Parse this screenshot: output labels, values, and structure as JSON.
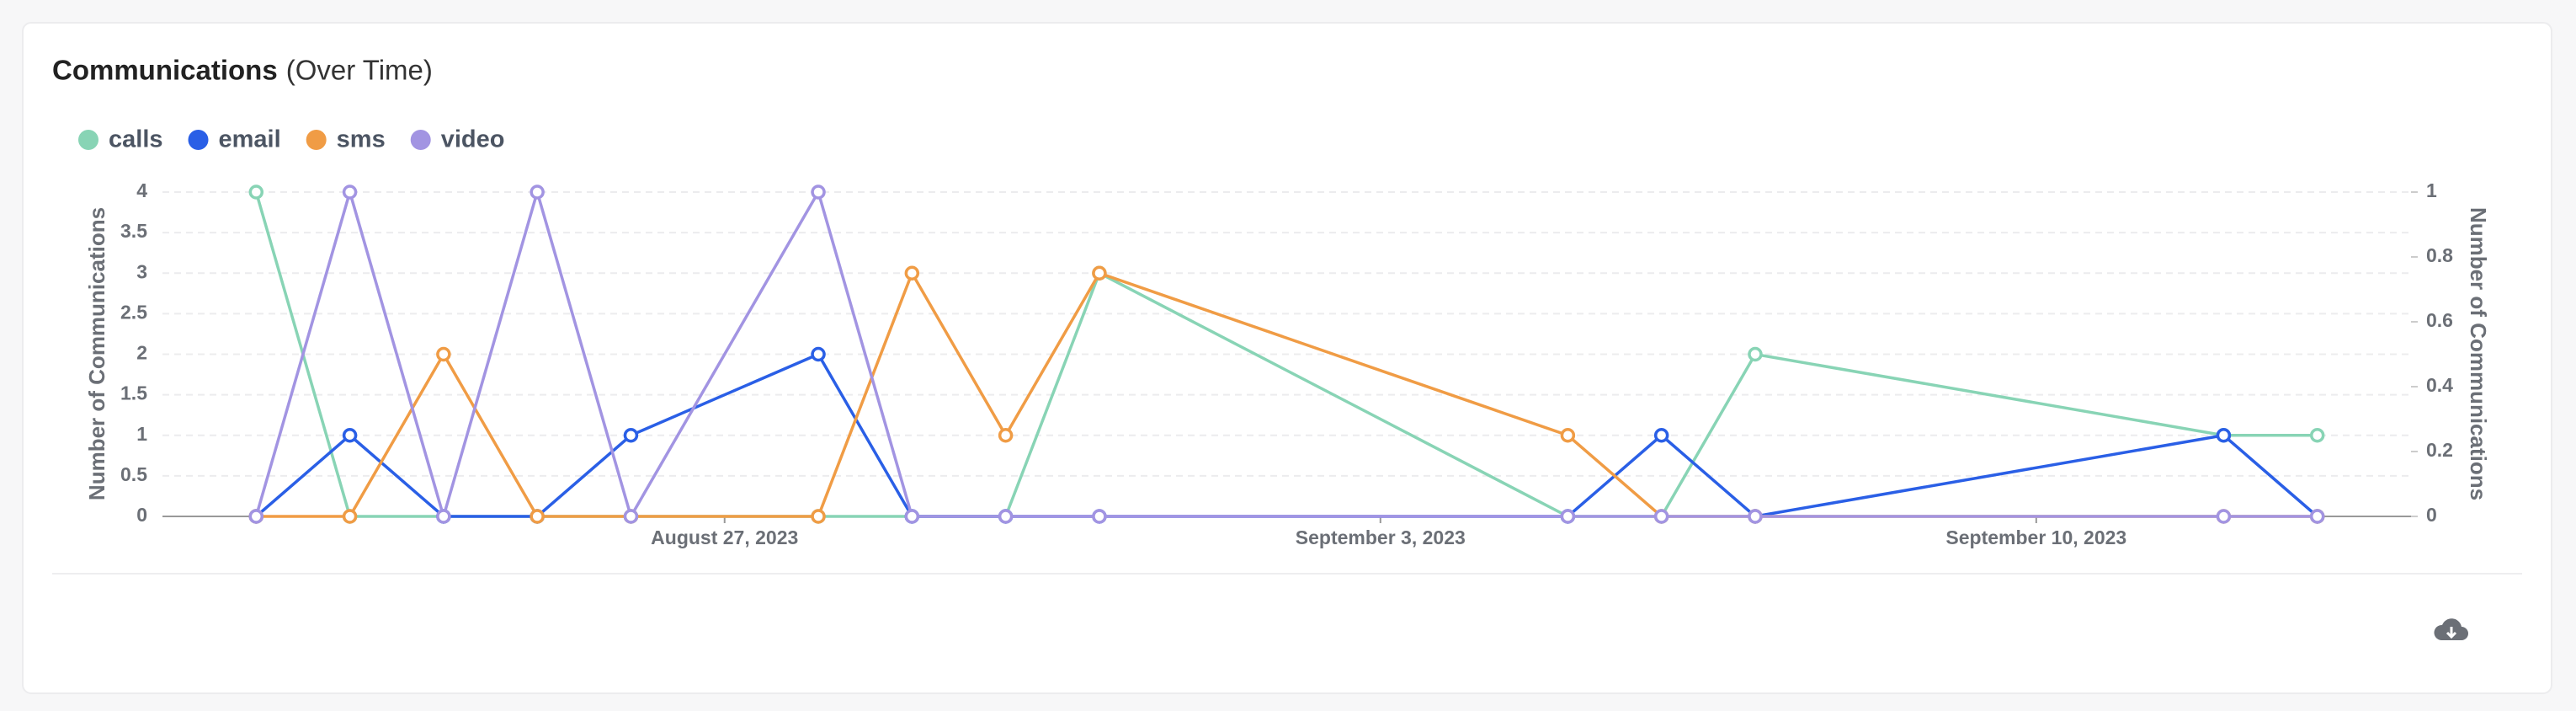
{
  "chart_data": {
    "type": "line",
    "title": "Communications",
    "subtitle": "(Over Time)",
    "x": [
      "2023-08-22",
      "2023-08-23",
      "2023-08-24",
      "2023-08-25",
      "2023-08-26",
      "2023-08-28",
      "2023-08-29",
      "2023-08-30",
      "2023-08-31",
      "2023-09-05",
      "2023-09-06",
      "2023-09-07",
      "2023-09-12",
      "2023-09-13"
    ],
    "xlim": [
      "2023-08-21",
      "2023-09-14"
    ],
    "xticks": [
      {
        "value": "2023-08-27",
        "label": "August 27, 2023"
      },
      {
        "value": "2023-09-03",
        "label": "September 3, 2023"
      },
      {
        "value": "2023-09-10",
        "label": "September 10, 2023"
      }
    ],
    "ylabel": "Number of Communications",
    "y2label": "Number of Communications",
    "ylim": [
      0,
      4
    ],
    "yticks": [
      0,
      0.5,
      1,
      1.5,
      2,
      2.5,
      3,
      3.5,
      4
    ],
    "y2lim": [
      0,
      1
    ],
    "y2ticks": [
      0,
      0.2,
      0.4,
      0.6,
      0.8,
      1
    ],
    "grid": true,
    "legend": "top-left",
    "series": [
      {
        "name": "calls",
        "color": "#88d4b5",
        "values": [
          4,
          0,
          0,
          0,
          0,
          0,
          0,
          0,
          3,
          0,
          0,
          2,
          1,
          1
        ]
      },
      {
        "name": "email",
        "color": "#2a5fe6",
        "values": [
          0,
          1,
          0,
          0,
          1,
          2,
          0,
          0,
          0,
          0,
          1,
          0,
          1,
          0
        ]
      },
      {
        "name": "sms",
        "color": "#f09c45",
        "values": [
          0,
          0,
          2,
          0,
          0,
          0,
          3,
          1,
          3,
          1,
          0,
          0,
          0,
          0
        ]
      },
      {
        "name": "video",
        "color": "#a294e2",
        "axis": "y2",
        "values": [
          0,
          1,
          0,
          1,
          0,
          1,
          0,
          0,
          0,
          0,
          0,
          0,
          0,
          0
        ]
      }
    ]
  }
}
